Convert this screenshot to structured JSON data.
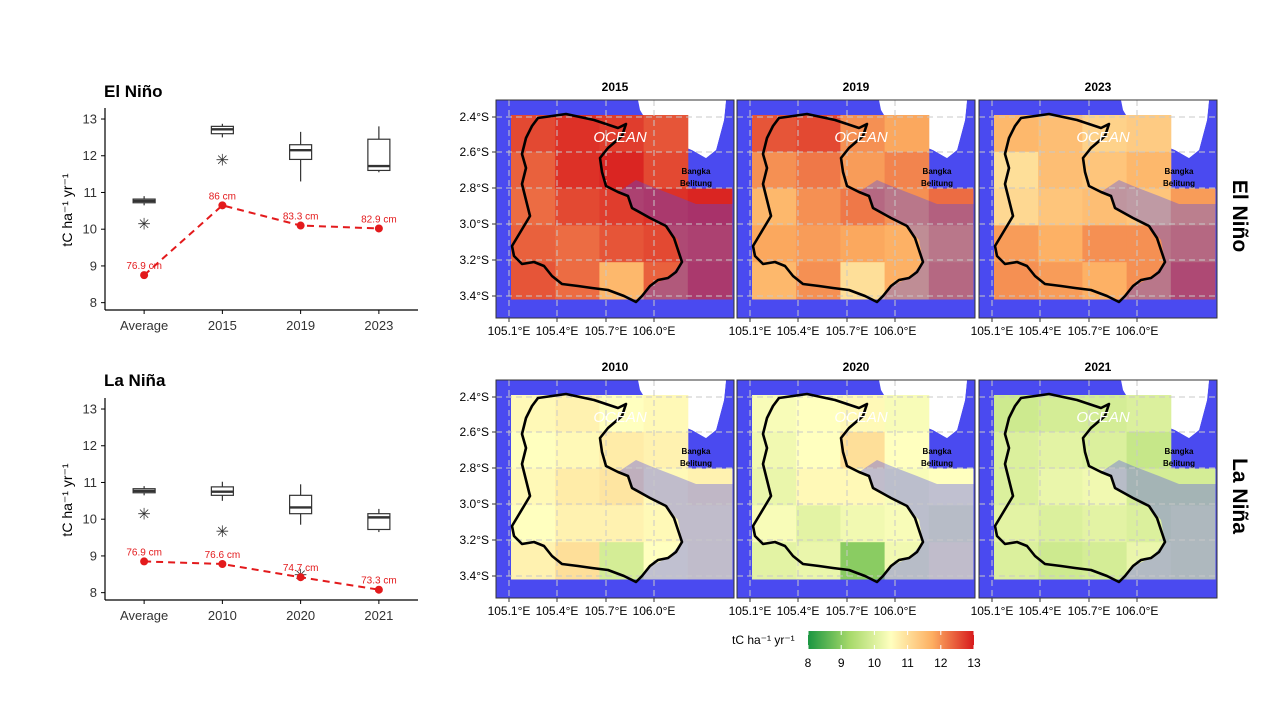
{
  "row_labels": [
    "El Niño",
    "La Niña"
  ],
  "colorbar": {
    "label": "tC ha⁻¹ yr⁻¹",
    "ticks": [
      "8",
      "9",
      "10",
      "11",
      "12",
      "13"
    ],
    "min": 8,
    "max": 13,
    "colors": [
      "#1a9641",
      "#a6d96a",
      "#ffffbf",
      "#fdae61",
      "#d7191c"
    ]
  },
  "map_common": {
    "ocean_label": "OCEAN",
    "island_label_1": "Bangka",
    "island_label_2": "Belitung",
    "lat_ticks": [
      "2.4°S",
      "2.6°S",
      "2.8°S",
      "3.0°S",
      "3.2°S",
      "3.4°S"
    ],
    "lon_ticks": [
      "105.1°E",
      "105.4°E",
      "105.7°E",
      "106.0°E"
    ],
    "sea_color": "#4a4af0"
  },
  "chart_data": [
    {
      "type": "box",
      "title": "El Niño",
      "ylabel": "tC ha⁻¹ yr⁻¹",
      "categories": [
        "Average",
        "2015",
        "2019",
        "2023"
      ],
      "ylim": [
        7.8,
        13.3
      ],
      "yticks": [
        "8",
        "9",
        "10",
        "11",
        "12",
        "13"
      ],
      "boxes": [
        {
          "whisker_low": 10.65,
          "q1": 10.72,
          "median": 10.77,
          "q3": 10.82,
          "whisker_high": 10.9,
          "outliers": [
            10.15
          ]
        },
        {
          "whisker_low": 12.5,
          "q1": 12.6,
          "median": 12.72,
          "q3": 12.8,
          "whisker_high": 12.87,
          "outliers": [
            11.9
          ]
        },
        {
          "whisker_low": 11.3,
          "q1": 11.9,
          "median": 12.15,
          "q3": 12.3,
          "whisker_high": 12.65,
          "outliers": []
        },
        {
          "whisker_low": 11.55,
          "q1": 11.6,
          "median": 11.72,
          "q3": 12.45,
          "whisker_high": 12.8,
          "outliers": []
        }
      ],
      "rainfall_line": {
        "color": "#e31a1c",
        "values": [
          8.75,
          10.65,
          10.1,
          10.02
        ],
        "labels": [
          "76.9 cm",
          "86 cm",
          "83.3 cm",
          "82.9 cm"
        ]
      }
    },
    {
      "type": "box",
      "title": "La Niña",
      "ylabel": "tC ha⁻¹ yr⁻¹",
      "categories": [
        "Average",
        "2010",
        "2020",
        "2021"
      ],
      "ylim": [
        7.8,
        13.3
      ],
      "yticks": [
        "8",
        "9",
        "10",
        "11",
        "12",
        "13"
      ],
      "boxes": [
        {
          "whisker_low": 10.65,
          "q1": 10.72,
          "median": 10.77,
          "q3": 10.83,
          "whisker_high": 10.9,
          "outliers": [
            10.15
          ]
        },
        {
          "whisker_low": 10.5,
          "q1": 10.65,
          "median": 10.75,
          "q3": 10.88,
          "whisker_high": 11.02,
          "outliers": [
            9.68
          ]
        },
        {
          "whisker_low": 9.85,
          "q1": 10.15,
          "median": 10.32,
          "q3": 10.65,
          "whisker_high": 10.95,
          "outliers": [
            8.5
          ]
        },
        {
          "whisker_low": 9.65,
          "q1": 9.72,
          "median": 10.05,
          "q3": 10.15,
          "whisker_high": 10.28,
          "outliers": []
        }
      ],
      "rainfall_line": {
        "color": "#e31a1c",
        "values": [
          8.85,
          8.78,
          8.42,
          8.08
        ],
        "labels": [
          "76.9 cm",
          "76.6 cm",
          "74.7 cm",
          "73.3 cm"
        ]
      }
    },
    {
      "type": "heatmap",
      "title": "2015",
      "grid_values": [
        [
          12.6,
          12.8,
          12.7,
          12.5,
          null
        ],
        [
          12.4,
          12.8,
          12.9,
          12.6,
          null
        ],
        [
          12.3,
          12.6,
          12.7,
          12.8,
          12.9
        ],
        [
          12.4,
          12.3,
          12.5,
          12.6,
          12.7
        ],
        [
          12.5,
          12.3,
          11.6,
          12.4,
          12.8
        ]
      ]
    },
    {
      "type": "heatmap",
      "title": "2019",
      "grid_values": [
        [
          12.5,
          12.6,
          12.0,
          11.8,
          null
        ],
        [
          12.0,
          12.2,
          11.9,
          12.1,
          null
        ],
        [
          11.6,
          12.0,
          12.2,
          12.0,
          12.3
        ],
        [
          11.8,
          11.9,
          11.8,
          11.7,
          12.0
        ],
        [
          11.6,
          12.0,
          11.0,
          11.7,
          12.2
        ]
      ]
    },
    {
      "type": "heatmap",
      "title": "2023",
      "grid_values": [
        [
          11.6,
          11.5,
          11.2,
          11.3,
          null
        ],
        [
          11.0,
          11.5,
          11.4,
          11.6,
          null
        ],
        [
          11.1,
          11.4,
          11.5,
          11.4,
          11.9
        ],
        [
          11.9,
          11.7,
          12.0,
          12.0,
          12.2
        ],
        [
          12.0,
          11.9,
          11.7,
          12.0,
          12.6
        ]
      ]
    },
    {
      "type": "heatmap",
      "title": "2010",
      "grid_values": [
        [
          10.6,
          10.7,
          10.5,
          10.6,
          null
        ],
        [
          10.5,
          10.6,
          10.8,
          10.7,
          null
        ],
        [
          10.6,
          10.8,
          10.9,
          10.6,
          10.7
        ],
        [
          10.5,
          10.7,
          10.7,
          10.6,
          10.6
        ],
        [
          10.7,
          11.0,
          9.9,
          10.5,
          10.6
        ]
      ]
    },
    {
      "type": "heatmap",
      "title": "2020",
      "grid_values": [
        [
          10.4,
          10.5,
          10.6,
          10.4,
          null
        ],
        [
          10.3,
          10.5,
          11.0,
          10.5,
          null
        ],
        [
          10.2,
          10.6,
          10.6,
          10.4,
          10.5
        ],
        [
          10.4,
          10.1,
          10.3,
          10.4,
          10.3
        ],
        [
          10.1,
          10.2,
          9.0,
          10.3,
          10.6
        ]
      ]
    },
    {
      "type": "heatmap",
      "title": "2021",
      "grid_values": [
        [
          9.8,
          9.9,
          9.9,
          10.0,
          null
        ],
        [
          10.0,
          10.1,
          10.0,
          9.7,
          null
        ],
        [
          10.0,
          10.2,
          10.3,
          9.9,
          9.9
        ],
        [
          10.1,
          10.0,
          10.1,
          10.0,
          10.1
        ],
        [
          10.0,
          9.8,
          9.9,
          10.2,
          10.1
        ]
      ]
    }
  ]
}
